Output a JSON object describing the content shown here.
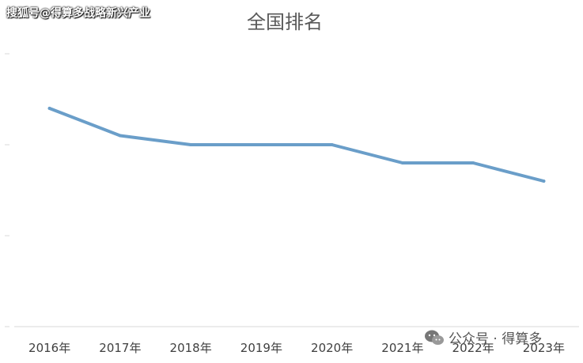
{
  "chart_data": {
    "type": "line",
    "title": "全国排名",
    "categories": [
      "2016年",
      "2017年",
      "2018年",
      "2019年",
      "2020年",
      "2021年",
      "2022年",
      "2023年"
    ],
    "series": [
      {
        "values": [
          24,
          21,
          20,
          20,
          20,
          18,
          18,
          16
        ]
      }
    ],
    "ylim": [
      0,
      30
    ],
    "y_tick_values": [
      0,
      10,
      20,
      30
    ],
    "y_tick_labels_visible": false,
    "grid": false,
    "legend": "none",
    "colors": {
      "line": "#6a9ec9",
      "axis": "#d9d9d9",
      "title": "#595959",
      "tick_label": "#404040"
    }
  },
  "watermark": {
    "top_text": "搜狐号@得算多战略新兴产业",
    "bottom_text": "公众号 · 得算多",
    "bottom_icon": "wechat-icon"
  }
}
